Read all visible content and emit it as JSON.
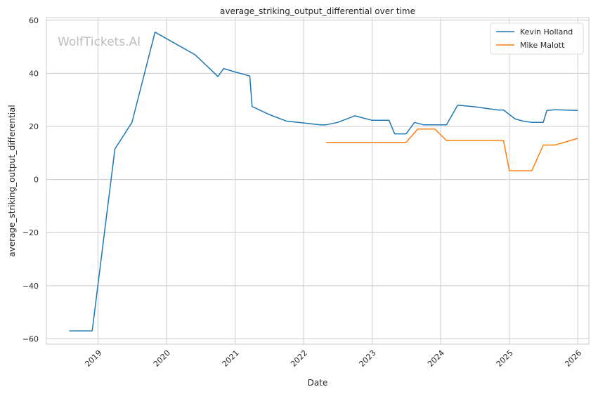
{
  "chart_data": {
    "type": "line",
    "title": "average_striking_output_differential over time",
    "xlabel": "Date",
    "ylabel": "average_striking_output_differential",
    "watermark": "WolfTickets.AI",
    "xlim": [
      "2018-04-01",
      "2026-03-01"
    ],
    "ylim": [
      -62,
      61
    ],
    "x_ticks": [
      "2019",
      "2020",
      "2021",
      "2022",
      "2023",
      "2024",
      "2025",
      "2026"
    ],
    "y_ticks": [
      -60,
      -40,
      -20,
      0,
      20,
      40,
      60
    ],
    "y_tick_labels": [
      "−60",
      "−40",
      "−20",
      "0",
      "20",
      "40",
      "60"
    ],
    "grid": true,
    "legend_position": "top-right",
    "series": [
      {
        "name": "Kevin Holland",
        "color": "#1f77b4",
        "points": [
          [
            "2018-08-01",
            -57
          ],
          [
            "2018-12-01",
            -57
          ],
          [
            "2019-04-01",
            11.5
          ],
          [
            "2019-07-01",
            21.5
          ],
          [
            "2019-11-01",
            55.5
          ],
          [
            "2020-06-01",
            47
          ],
          [
            "2020-08-15",
            42
          ],
          [
            "2020-10-01",
            38.8
          ],
          [
            "2020-11-01",
            41.8
          ],
          [
            "2021-01-01",
            40.5
          ],
          [
            "2021-03-20",
            39
          ],
          [
            "2021-04-01",
            27.5
          ],
          [
            "2021-07-01",
            24.5
          ],
          [
            "2021-10-01",
            22
          ],
          [
            "2022-04-01",
            20.6
          ],
          [
            "2022-05-01",
            20.6
          ],
          [
            "2022-07-01",
            21.5
          ],
          [
            "2022-10-01",
            24
          ],
          [
            "2023-01-01",
            22.3
          ],
          [
            "2023-04-01",
            22.3
          ],
          [
            "2023-05-01",
            17.2
          ],
          [
            "2023-07-01",
            17.2
          ],
          [
            "2023-08-15",
            21.5
          ],
          [
            "2023-10-01",
            20.6
          ],
          [
            "2024-02-01",
            20.6
          ],
          [
            "2024-04-01",
            28
          ],
          [
            "2024-07-01",
            27.4
          ],
          [
            "2024-11-01",
            26.2
          ],
          [
            "2024-12-01",
            26.2
          ],
          [
            "2025-02-01",
            22.8
          ],
          [
            "2025-03-15",
            22
          ],
          [
            "2025-05-01",
            21.5
          ],
          [
            "2025-07-01",
            21.5
          ],
          [
            "2025-07-20",
            26
          ],
          [
            "2025-09-01",
            26.3
          ],
          [
            "2026-01-01",
            26
          ]
        ]
      },
      {
        "name": "Mike Malott",
        "color": "#ff7f0e",
        "points": [
          [
            "2022-05-01",
            14
          ],
          [
            "2023-07-01",
            14
          ],
          [
            "2023-09-01",
            19
          ],
          [
            "2023-12-01",
            19
          ],
          [
            "2024-02-01",
            14.7
          ],
          [
            "2024-12-01",
            14.7
          ],
          [
            "2025-01-01",
            3.3
          ],
          [
            "2025-05-01",
            3.3
          ],
          [
            "2025-07-01",
            13
          ],
          [
            "2025-09-01",
            13
          ],
          [
            "2026-01-01",
            15.5
          ]
        ]
      }
    ]
  }
}
